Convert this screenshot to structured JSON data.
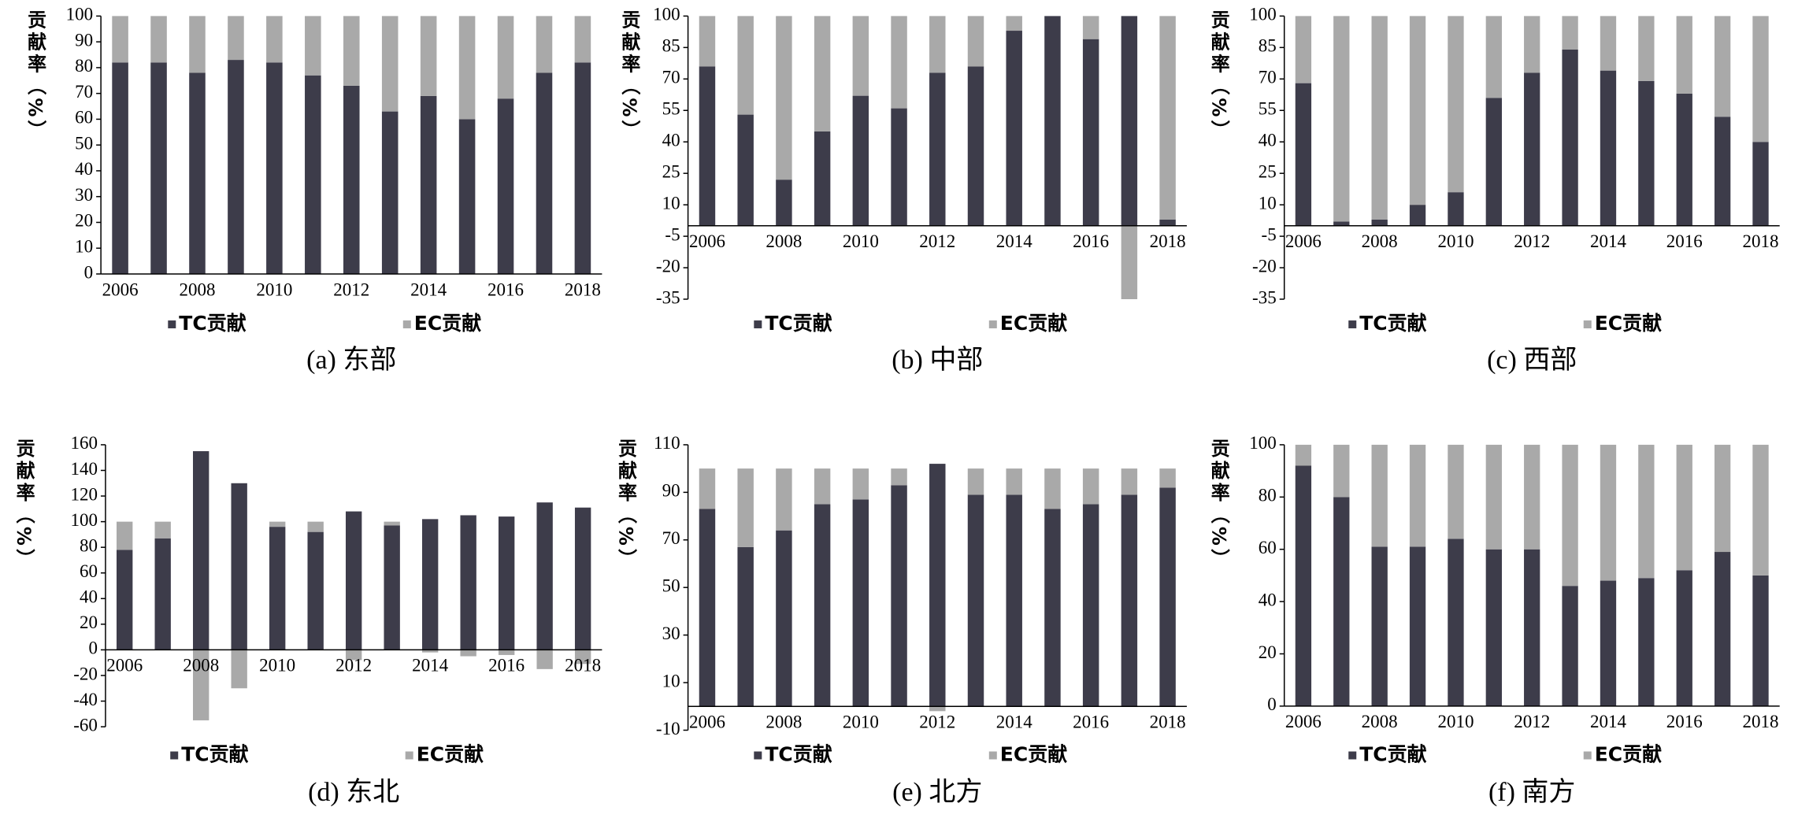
{
  "chart_data": [
    {
      "type": "bar",
      "stacked": true,
      "title": "(a) 东部",
      "y_label": "贡献率（%）",
      "categories": [
        "2006",
        null,
        "2008",
        null,
        "2010",
        null,
        "2012",
        null,
        "2014",
        null,
        "2016",
        null,
        "2018"
      ],
      "series": [
        {
          "name": "TC贡献",
          "color": "#3d3c4a",
          "values": [
            82,
            82,
            78,
            83,
            82,
            77,
            73,
            63,
            69,
            60,
            68,
            78,
            82
          ]
        },
        {
          "name": "EC贡献",
          "color": "#a9a9a9",
          "values": [
            18,
            18,
            22,
            17,
            18,
            23,
            27,
            37,
            31,
            40,
            32,
            22,
            18
          ]
        }
      ],
      "ylim": [
        0,
        100
      ],
      "yticks": [
        0,
        10,
        20,
        30,
        40,
        50,
        60,
        70,
        80,
        90,
        100
      ]
    },
    {
      "type": "bar",
      "stacked": true,
      "title": "(b) 中部",
      "y_label": "贡献率（%）",
      "categories": [
        "2006",
        null,
        "2008",
        null,
        "2010",
        null,
        "2012",
        null,
        "2014",
        null,
        "2016",
        null,
        "2018"
      ],
      "series": [
        {
          "name": "TC贡献",
          "color": "#3d3c4a",
          "values": [
            76,
            53,
            22,
            45,
            62,
            56,
            73,
            76,
            93,
            100,
            89,
            100,
            3
          ]
        },
        {
          "name": "EC贡献",
          "color": "#a9a9a9",
          "values": [
            24,
            47,
            78,
            55,
            38,
            44,
            27,
            24,
            7,
            0,
            11,
            -35,
            97
          ]
        }
      ],
      "ylim": [
        -35,
        100
      ],
      "yticks": [
        -35,
        -20,
        -5,
        10,
        25,
        40,
        55,
        70,
        85,
        100
      ]
    },
    {
      "type": "bar",
      "stacked": true,
      "title": "(c) 西部",
      "y_label": "贡献率（%）",
      "categories": [
        "2006",
        null,
        "2008",
        null,
        "2010",
        null,
        "2012",
        null,
        "2014",
        null,
        "2016",
        null,
        "2018"
      ],
      "series": [
        {
          "name": "TC贡献",
          "color": "#3d3c4a",
          "values": [
            68,
            2,
            3,
            10,
            16,
            61,
            73,
            84,
            74,
            69,
            63,
            52,
            40
          ]
        },
        {
          "name": "EC贡献",
          "color": "#a9a9a9",
          "values": [
            32,
            98,
            97,
            90,
            84,
            39,
            27,
            16,
            26,
            31,
            37,
            48,
            60
          ]
        }
      ],
      "ylim": [
        -35,
        100
      ],
      "yticks": [
        -35,
        -20,
        -5,
        10,
        25,
        40,
        55,
        70,
        85,
        100
      ]
    },
    {
      "type": "bar",
      "stacked": true,
      "title": "(d) 东北",
      "y_label": "贡献率（%）",
      "categories": [
        "2006",
        null,
        "2008",
        null,
        "2010",
        null,
        "2012",
        null,
        "2014",
        null,
        "2016",
        null,
        "2018"
      ],
      "series": [
        {
          "name": "TC贡献",
          "color": "#3d3c4a",
          "values": [
            78,
            87,
            155,
            130,
            96,
            92,
            108,
            97,
            102,
            105,
            104,
            115,
            111
          ]
        },
        {
          "name": "EC贡献",
          "color": "#a9a9a9",
          "values": [
            22,
            13,
            -55,
            -30,
            4,
            8,
            -8,
            3,
            -2,
            -5,
            -4,
            -15,
            -11
          ]
        }
      ],
      "ylim": [
        -60,
        160
      ],
      "yticks": [
        -60,
        -40,
        -20,
        0,
        20,
        40,
        60,
        80,
        100,
        120,
        140,
        160
      ]
    },
    {
      "type": "bar",
      "stacked": true,
      "title": "(e) 北方",
      "y_label": "贡献率（%）",
      "categories": [
        "2006",
        null,
        "2008",
        null,
        "2010",
        null,
        "2012",
        null,
        "2014",
        null,
        "2016",
        null,
        "2018"
      ],
      "series": [
        {
          "name": "TC贡献",
          "color": "#3d3c4a",
          "values": [
            83,
            67,
            74,
            85,
            87,
            93,
            102,
            89,
            89,
            83,
            85,
            89,
            92
          ]
        },
        {
          "name": "EC贡献",
          "color": "#a9a9a9",
          "values": [
            17,
            33,
            26,
            15,
            13,
            7,
            -2,
            11,
            11,
            17,
            15,
            11,
            8
          ]
        }
      ],
      "ylim": [
        -10,
        110
      ],
      "yticks": [
        -10,
        10,
        30,
        50,
        70,
        90,
        110
      ]
    },
    {
      "type": "bar",
      "stacked": true,
      "title": "(f) 南方",
      "y_label": "贡献率（%）",
      "categories": [
        "2006",
        null,
        "2008",
        null,
        "2010",
        null,
        "2012",
        null,
        "2014",
        null,
        "2016",
        null,
        "2018"
      ],
      "series": [
        {
          "name": "TC贡献",
          "color": "#3d3c4a",
          "values": [
            92,
            80,
            61,
            61,
            64,
            60,
            60,
            46,
            48,
            49,
            52,
            59,
            50
          ]
        },
        {
          "name": "EC贡献",
          "color": "#a9a9a9",
          "values": [
            8,
            20,
            39,
            39,
            36,
            40,
            40,
            54,
            52,
            51,
            48,
            41,
            50
          ]
        }
      ],
      "ylim": [
        0,
        100
      ],
      "yticks": [
        0,
        20,
        40,
        60,
        80,
        100
      ]
    }
  ]
}
